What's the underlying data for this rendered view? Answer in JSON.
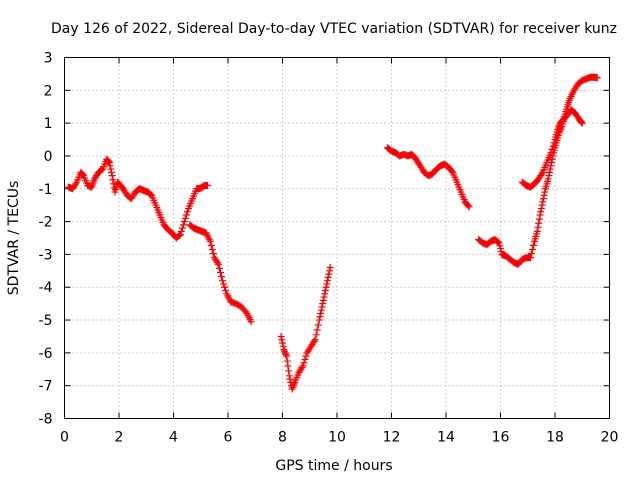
{
  "chart_data": {
    "type": "scatter",
    "title": "Day 126 of 2022, Sidereal Day-to-day VTEC variation (SDTVAR) for receiver kunz",
    "xlabel": "GPS time / hours",
    "ylabel": "SDTVAR / TECUs",
    "xlim": [
      0,
      20
    ],
    "ylim": [
      -8,
      3
    ],
    "xticks": [
      0,
      2,
      4,
      6,
      8,
      10,
      12,
      14,
      16,
      18,
      20
    ],
    "yticks": [
      -8,
      -7,
      -6,
      -5,
      -4,
      -3,
      -2,
      -1,
      0,
      1,
      2,
      3
    ],
    "grid": true,
    "marker": "+",
    "color": "#ff0000",
    "segments": [
      {
        "x": [
          0.15,
          0.3,
          0.45,
          0.6,
          0.7,
          0.85,
          1.0,
          1.1,
          1.25,
          1.4,
          1.55,
          1.65,
          1.75,
          1.85,
          1.95,
          2.05,
          2.15,
          2.3,
          2.45,
          2.6,
          2.75,
          2.9,
          3.05,
          3.2,
          3.35,
          3.5,
          3.65,
          3.8,
          3.95,
          4.1,
          4.25,
          4.4,
          4.55,
          4.7,
          4.85,
          4.95,
          5.05,
          5.15,
          5.25
        ],
        "y": [
          -0.95,
          -1.0,
          -0.8,
          -0.5,
          -0.6,
          -0.9,
          -0.95,
          -0.7,
          -0.5,
          -0.4,
          -0.1,
          -0.2,
          -0.6,
          -1.1,
          -0.8,
          -0.9,
          -1.0,
          -1.2,
          -1.3,
          -1.1,
          -1.0,
          -1.05,
          -1.1,
          -1.2,
          -1.5,
          -1.8,
          -2.1,
          -2.25,
          -2.35,
          -2.5,
          -2.4,
          -2.0,
          -1.6,
          -1.3,
          -1.0,
          -1.0,
          -0.95,
          -0.9,
          -0.9
        ]
      },
      {
        "x": [
          4.6,
          4.75,
          4.9,
          5.05,
          5.2,
          5.35,
          5.5,
          5.65,
          5.8,
          5.95,
          6.1,
          6.3,
          6.5,
          6.7,
          6.85
        ],
        "y": [
          -2.1,
          -2.2,
          -2.25,
          -2.3,
          -2.35,
          -2.6,
          -3.1,
          -3.3,
          -3.8,
          -4.2,
          -4.45,
          -4.5,
          -4.6,
          -4.8,
          -5.05
        ]
      },
      {
        "x": [
          7.95,
          8.05,
          8.15,
          8.25,
          8.35,
          8.45,
          8.6,
          8.75,
          8.9,
          9.05,
          9.2,
          9.35,
          9.45,
          9.55,
          9.65,
          9.75
        ],
        "y": [
          -5.5,
          -5.9,
          -6.1,
          -6.7,
          -7.1,
          -6.9,
          -6.6,
          -6.4,
          -6.0,
          -5.8,
          -5.6,
          -5.0,
          -4.6,
          -4.2,
          -3.8,
          -3.4
        ]
      },
      {
        "x": [
          11.85,
          12.0,
          12.15,
          12.3,
          12.45,
          12.6,
          12.75,
          12.9,
          13.05,
          13.2,
          13.35,
          13.5,
          13.65,
          13.8,
          13.95,
          14.1,
          14.25,
          14.4,
          14.55,
          14.7,
          14.85
        ],
        "y": [
          0.25,
          0.15,
          0.1,
          0.0,
          0.05,
          0.0,
          0.05,
          -0.1,
          -0.3,
          -0.5,
          -0.6,
          -0.55,
          -0.4,
          -0.3,
          -0.25,
          -0.35,
          -0.5,
          -0.8,
          -1.1,
          -1.4,
          -1.55
        ]
      },
      {
        "x": [
          15.2,
          15.35,
          15.5,
          15.65,
          15.8,
          15.95,
          16.05,
          16.2,
          16.35,
          16.5,
          16.65,
          16.8,
          16.95,
          17.1,
          17.25,
          17.35,
          17.45,
          17.55,
          17.65,
          17.75,
          17.85,
          17.95,
          18.05,
          18.15,
          18.25,
          18.35,
          18.45,
          18.55,
          18.7,
          18.85,
          19.0,
          19.15,
          19.3,
          19.45,
          19.55
        ],
        "y": [
          -2.55,
          -2.65,
          -2.7,
          -2.6,
          -2.55,
          -2.65,
          -3.0,
          -3.05,
          -3.15,
          -3.25,
          -3.3,
          -3.15,
          -3.1,
          -3.1,
          -2.6,
          -2.3,
          -1.8,
          -1.4,
          -1.0,
          -0.7,
          -0.3,
          0.1,
          0.4,
          0.7,
          0.9,
          1.2,
          1.5,
          1.75,
          2.0,
          2.2,
          2.3,
          2.35,
          2.4,
          2.4,
          2.38
        ]
      },
      {
        "x": [
          16.8,
          16.95,
          17.1,
          17.25,
          17.4,
          17.55,
          17.7,
          17.85,
          18.0,
          18.1,
          18.2,
          18.3,
          18.45,
          18.6,
          18.75,
          18.9,
          19.0
        ],
        "y": [
          -0.8,
          -0.9,
          -0.95,
          -0.85,
          -0.7,
          -0.5,
          -0.2,
          0.1,
          0.5,
          0.8,
          1.0,
          1.1,
          1.25,
          1.4,
          1.3,
          1.1,
          1.0
        ]
      }
    ]
  }
}
